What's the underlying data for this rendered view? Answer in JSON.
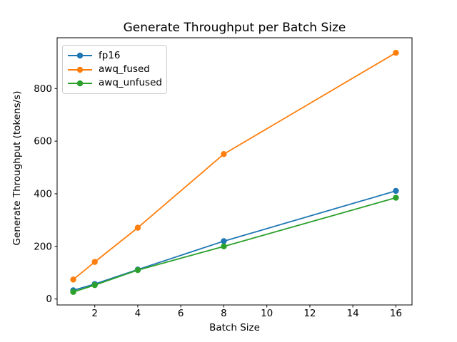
{
  "chart_data": {
    "type": "line",
    "title": "Generate Throughput per Batch Size",
    "xlabel": "Batch Size",
    "ylabel": "Generate Throughput (tokens/s)",
    "x": [
      1,
      2,
      4,
      8,
      16
    ],
    "series": [
      {
        "name": "fp16",
        "color": "#1f77b4",
        "values": [
          33,
          57,
          112,
          220,
          411
        ]
      },
      {
        "name": "awq_fused",
        "color": "#ff7f0e",
        "values": [
          74,
          141,
          271,
          551,
          936
        ]
      },
      {
        "name": "awq_unfused",
        "color": "#2ca02c",
        "values": [
          27,
          53,
          110,
          200,
          385
        ]
      }
    ],
    "xticks": [
      2,
      4,
      6,
      8,
      10,
      12,
      14,
      16
    ],
    "yticks": [
      0,
      200,
      400,
      600,
      800
    ],
    "xlim": [
      0.25,
      16.75
    ],
    "ylim": [
      -22.5,
      993
    ],
    "marker": "o",
    "grid": false,
    "legend_position": "upper left",
    "background": "#ffffff",
    "spine_color": "#000000"
  }
}
